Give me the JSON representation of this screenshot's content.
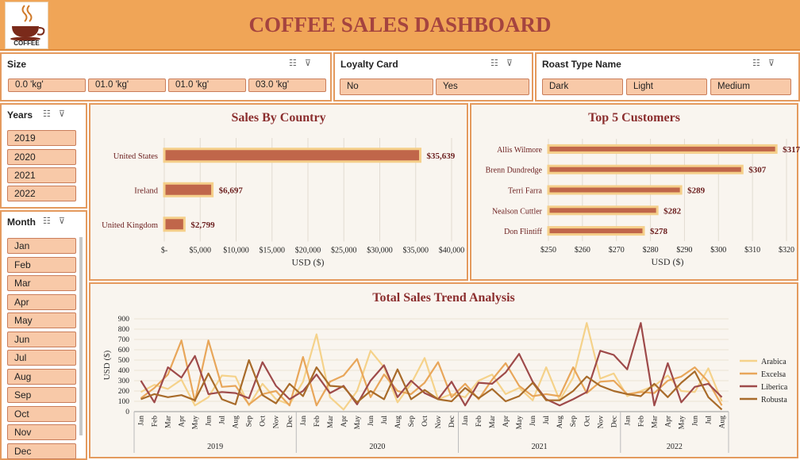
{
  "header": {
    "title": "COFFEE SALES DASHBOARD",
    "logo_text": "COFFEE"
  },
  "slicers": {
    "size": {
      "title": "Size",
      "items": [
        "0.0 'kg'",
        "01.0 'kg'",
        "01.0 'kg'",
        "03.0 'kg'"
      ]
    },
    "loyalty": {
      "title": "Loyalty Card",
      "items": [
        "No",
        "Yes"
      ]
    },
    "roast": {
      "title": "Roast Type Name",
      "items": [
        "Dark",
        "Light",
        "Medium"
      ]
    },
    "years": {
      "title": "Years",
      "items": [
        "2019",
        "2020",
        "2021",
        "2022"
      ]
    },
    "month": {
      "title": "Month",
      "items": [
        "Jan",
        "Feb",
        "Mar",
        "Apr",
        "May",
        "Jun",
        "Jul",
        "Aug",
        "Sep",
        "Oct",
        "Nov",
        "Dec"
      ]
    }
  },
  "colors": {
    "header_bg": "#f0a557",
    "title_text": "#a5443f",
    "bar_fill": "#c0664a",
    "bar_outline": "#f5cf8a",
    "pill_bg": "#f8c9a8",
    "panel_bg": "#f9f5ef",
    "panel_border": "#e49a5e"
  },
  "chart_data": [
    {
      "type": "bar",
      "orientation": "horizontal",
      "title": "Sales By Country",
      "xlabel": "USD ($)",
      "categories": [
        "United States",
        "Ireland",
        "United Kingdom"
      ],
      "values": [
        35639,
        6697,
        2799
      ],
      "data_labels": [
        "$35,639",
        "$6,697",
        "$2,799"
      ],
      "xlim": [
        0,
        40000
      ],
      "x_ticks": [
        "$-",
        "$5,000",
        "$10,000",
        "$15,000",
        "$20,000",
        "$25,000",
        "$30,000",
        "$35,000",
        "$40,000"
      ],
      "grid": true
    },
    {
      "type": "bar",
      "orientation": "horizontal",
      "title": "Top 5 Customers",
      "xlabel": "USD ($)",
      "categories": [
        "Allis Wilmore",
        "Brenn Dundredge",
        "Terri Farra",
        "Nealson Cuttler",
        "Don Flintiff"
      ],
      "values": [
        317,
        307,
        289,
        282,
        278
      ],
      "data_labels": [
        "$317",
        "$307",
        "$289",
        "$282",
        "$278"
      ],
      "xlim": [
        250,
        320
      ],
      "x_ticks": [
        "$250",
        "$260",
        "$270",
        "$280",
        "$290",
        "$300",
        "$310",
        "$320"
      ],
      "grid": true
    },
    {
      "type": "line",
      "title": "Total Sales Trend Analysis",
      "ylabel": "USD ($)",
      "ylim": [
        0,
        900
      ],
      "y_ticks": [
        "0",
        "100",
        "200",
        "300",
        "400",
        "500",
        "600",
        "700",
        "800",
        "900"
      ],
      "months": [
        "Jan",
        "Feb",
        "Mar",
        "Apr",
        "May",
        "Jun",
        "Jul",
        "Aug",
        "Sep",
        "Oct",
        "Nov",
        "Dec",
        "Jan",
        "Feb",
        "Mar",
        "Apr",
        "May",
        "Jun",
        "Jul",
        "Aug",
        "Sep",
        "Oct",
        "Nov",
        "Dec",
        "Jan",
        "Feb",
        "Mar",
        "Apr",
        "May",
        "Jun",
        "Jul",
        "Aug",
        "Sep",
        "Oct",
        "Nov",
        "Dec",
        "Jan",
        "Feb",
        "Mar",
        "Apr",
        "May",
        "Jun",
        "Jul",
        "Aug"
      ],
      "years": [
        {
          "label": "2019",
          "count": 12
        },
        {
          "label": "2020",
          "count": 12
        },
        {
          "label": "2021",
          "count": 12
        },
        {
          "label": "2022",
          "count": 8
        }
      ],
      "legend_position": "right",
      "grid": true,
      "series": [
        {
          "name": "Arabica",
          "color": "#f5d28a",
          "values": [
            190,
            260,
            220,
            310,
            60,
            140,
            350,
            340,
            60,
            270,
            120,
            70,
            290,
            750,
            140,
            20,
            200,
            590,
            430,
            90,
            270,
            520,
            120,
            170,
            140,
            300,
            360,
            170,
            230,
            110,
            430,
            110,
            330,
            860,
            320,
            370,
            150,
            200,
            250,
            350,
            200,
            190,
            420,
            100
          ]
        },
        {
          "name": "Excelsa",
          "color": "#e8a65a",
          "values": [
            130,
            230,
            360,
            690,
            100,
            690,
            240,
            250,
            70,
            170,
            200,
            60,
            530,
            60,
            290,
            350,
            510,
            140,
            360,
            200,
            170,
            280,
            480,
            140,
            270,
            120,
            310,
            470,
            250,
            150,
            170,
            150,
            430,
            180,
            290,
            300,
            170,
            190,
            180,
            300,
            340,
            430,
            290,
            60
          ]
        },
        {
          "name": "Liberica",
          "color": "#9e4a4a",
          "values": [
            300,
            90,
            430,
            330,
            540,
            170,
            190,
            180,
            130,
            480,
            250,
            120,
            200,
            360,
            180,
            250,
            70,
            300,
            450,
            140,
            300,
            180,
            120,
            290,
            60,
            280,
            270,
            380,
            560,
            290,
            120,
            60,
            120,
            190,
            590,
            550,
            410,
            860,
            60,
            470,
            90,
            240,
            270,
            140
          ]
        },
        {
          "name": "Robusta",
          "color": "#a86b2a",
          "values": [
            120,
            170,
            140,
            160,
            110,
            370,
            120,
            70,
            500,
            160,
            80,
            270,
            150,
            430,
            250,
            240,
            90,
            200,
            120,
            410,
            120,
            210,
            120,
            100,
            230,
            130,
            220,
            100,
            150,
            280,
            110,
            110,
            200,
            340,
            250,
            200,
            170,
            150,
            270,
            140,
            280,
            390,
            140,
            20
          ]
        }
      ]
    }
  ]
}
